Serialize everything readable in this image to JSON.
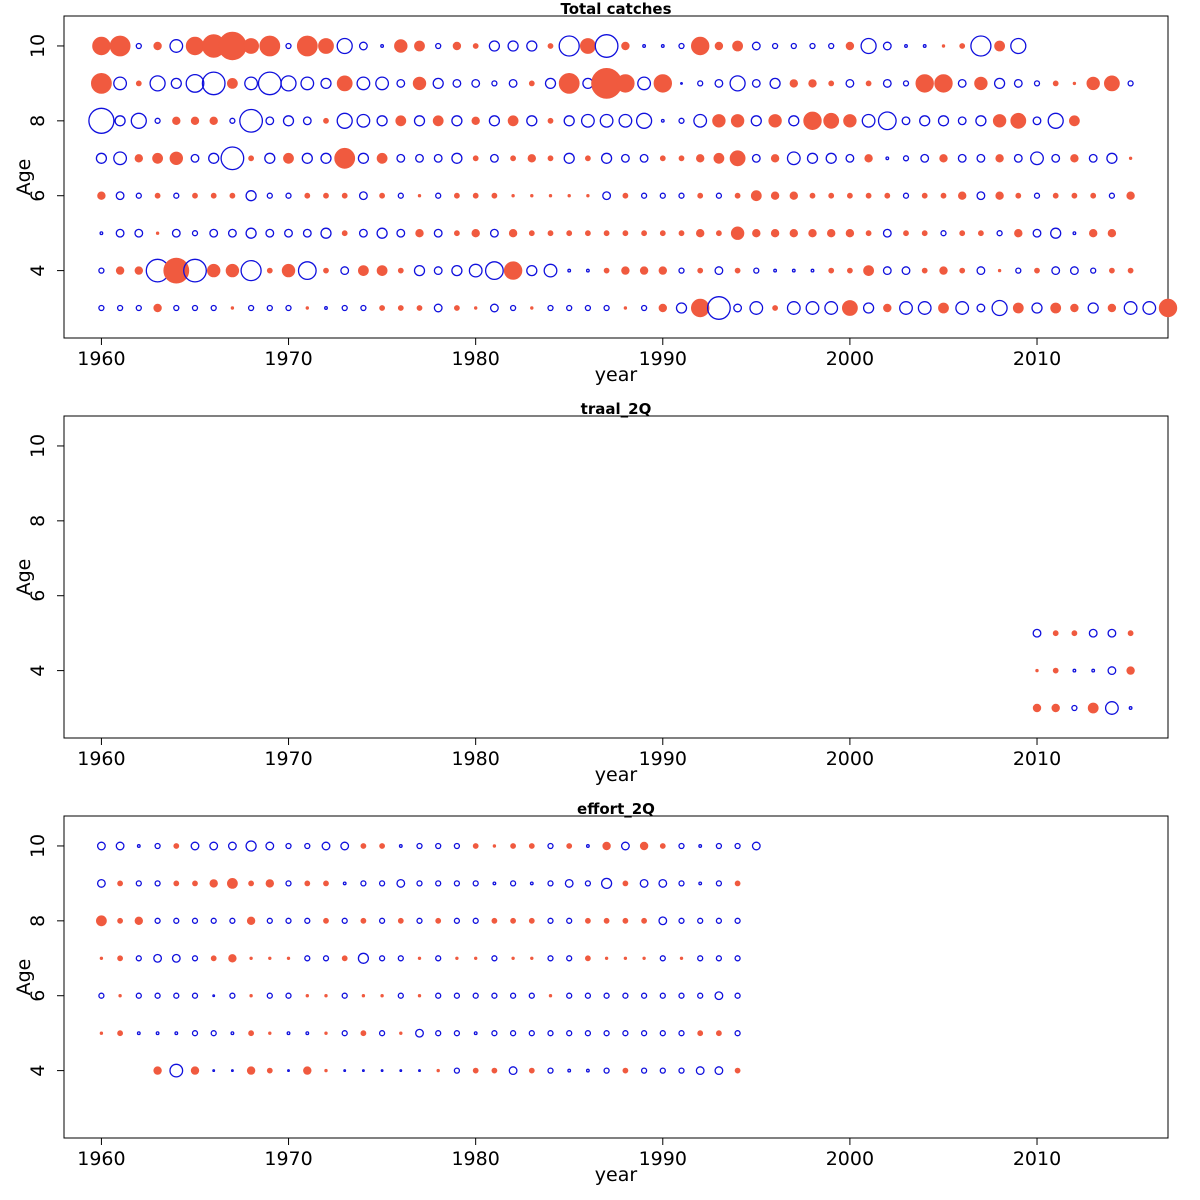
{
  "colors": {
    "positive": "#f05a3f",
    "negative": "#1010dd"
  },
  "chart_data": [
    {
      "type": "scatter",
      "title": "Total catches",
      "xlabel": "year",
      "ylabel": "Age",
      "xlim": [
        1958,
        2017
      ],
      "ylim": [
        2.2,
        10.8
      ],
      "xticks": [
        1960,
        1970,
        1980,
        1990,
        2000,
        2010
      ],
      "yticks": [
        4,
        6,
        8,
        10
      ],
      "grid": false,
      "encoding": "bubble size = |residual|; filled = positive, open = negative",
      "rows": [
        {
          "age": 10,
          "start": 1960,
          "v": [
            7,
            8,
            -2,
            3,
            -5,
            7,
            9,
            11,
            6,
            8,
            -2,
            8,
            6,
            -6,
            -3,
            -1,
            5,
            4,
            -2,
            3,
            2,
            -4,
            -4,
            -4,
            2,
            -8,
            6,
            -9,
            3,
            -1,
            -1,
            -2,
            7,
            3,
            4,
            -3,
            -2,
            -2,
            -2,
            -2,
            3,
            -6,
            -3,
            -1,
            -1,
            1,
            2,
            -8,
            4,
            -6
          ]
        },
        {
          "age": 9,
          "start": 1960,
          "v": [
            8,
            -5,
            2,
            -6,
            -4,
            -7,
            -9,
            4,
            -5,
            -9,
            -6,
            -5,
            -4,
            6,
            -5,
            -5,
            -3,
            5,
            -4,
            -3,
            -3,
            -2,
            -3,
            2,
            -4,
            8,
            -4,
            12,
            7,
            -5,
            7,
            0,
            -2,
            -3,
            -6,
            -3,
            -4,
            3,
            3,
            2,
            -3,
            2,
            -3,
            -2,
            7,
            7,
            -3,
            5,
            -4,
            -3,
            -2,
            2,
            1,
            5,
            6,
            -2
          ]
        },
        {
          "age": 8,
          "start": 1960,
          "v": [
            -10,
            -4,
            -6,
            -2,
            3,
            3,
            3,
            -2,
            -9,
            -3,
            -4,
            -3,
            2,
            -6,
            -5,
            -4,
            4,
            -4,
            4,
            -4,
            3,
            -4,
            4,
            -4,
            2,
            -4,
            -5,
            -5,
            -5,
            -6,
            -1,
            -2,
            -5,
            5,
            5,
            -4,
            5,
            -4,
            7,
            6,
            5,
            -5,
            -7,
            -3,
            -4,
            -4,
            -3,
            -4,
            5,
            6,
            -3,
            -6,
            4
          ]
        },
        {
          "age": 7,
          "start": 1960,
          "v": [
            -4,
            -5,
            3,
            4,
            5,
            -3,
            -4,
            -9,
            2,
            -4,
            4,
            -4,
            -4,
            8,
            -4,
            4,
            -3,
            -3,
            -3,
            -4,
            2,
            -3,
            2,
            3,
            2,
            -4,
            2,
            -4,
            -3,
            -3,
            2,
            2,
            3,
            4,
            6,
            -3,
            3,
            -5,
            -4,
            -4,
            -3,
            3,
            -1,
            -2,
            -3,
            3,
            -3,
            -3,
            3,
            -3,
            -5,
            -3,
            3,
            -3,
            -4,
            1
          ]
        },
        {
          "age": 6,
          "start": 1960,
          "v": [
            3,
            -3,
            -2,
            2,
            -2,
            2,
            2,
            2,
            -4,
            -2,
            -2,
            2,
            2,
            2,
            -3,
            2,
            -2,
            1,
            -2,
            2,
            2,
            2,
            1,
            1,
            1,
            1,
            1,
            -3,
            2,
            -2,
            -2,
            -2,
            2,
            -2,
            2,
            4,
            3,
            3,
            2,
            2,
            2,
            2,
            2,
            -2,
            2,
            2,
            3,
            -3,
            3,
            2,
            -2,
            2,
            2,
            2,
            -2,
            3
          ]
        },
        {
          "age": 5,
          "start": 1960,
          "v": [
            -1,
            -3,
            -3,
            1,
            -3,
            -2,
            -3,
            -3,
            -4,
            -3,
            -3,
            -3,
            -4,
            2,
            -3,
            -4,
            -3,
            3,
            -3,
            2,
            3,
            -3,
            3,
            2,
            2,
            2,
            2,
            2,
            2,
            2,
            2,
            2,
            3,
            2,
            5,
            3,
            3,
            3,
            3,
            3,
            3,
            2,
            -3,
            2,
            2,
            -2,
            2,
            2,
            -2,
            3,
            -3,
            -4,
            -1,
            3,
            3
          ]
        },
        {
          "age": 4,
          "start": 1960,
          "v": [
            -2,
            3,
            3,
            -9,
            10,
            -9,
            5,
            5,
            -8,
            2,
            5,
            -7,
            2,
            -3,
            4,
            4,
            2,
            -4,
            -3,
            -4,
            -5,
            -7,
            7,
            -4,
            -5,
            -1,
            -1,
            2,
            3,
            3,
            3,
            -2,
            2,
            -3,
            2,
            -2,
            -1,
            -1,
            -1,
            2,
            2,
            4,
            -3,
            -3,
            2,
            3,
            2,
            -3,
            1,
            -2,
            2,
            -3,
            -3,
            -2,
            2,
            2
          ]
        },
        {
          "age": 3,
          "start": 1960,
          "v": [
            -2,
            -2,
            -2,
            3,
            -2,
            -2,
            -2,
            1,
            -2,
            -2,
            -2,
            1,
            -1,
            -2,
            -2,
            2,
            2,
            2,
            -3,
            2,
            1,
            -3,
            -2,
            1,
            -2,
            -2,
            -2,
            -2,
            1,
            -2,
            3,
            -4,
            7,
            -9,
            -3,
            -5,
            2,
            -5,
            -5,
            -5,
            6,
            -4,
            3,
            -5,
            -5,
            4,
            -5,
            -3,
            -6,
            4,
            -4,
            4,
            3,
            -4,
            3,
            -5,
            -5,
            7
          ]
        }
      ]
    },
    {
      "type": "scatter",
      "title": "traal_2Q",
      "xlabel": "year",
      "ylabel": "Age",
      "xlim": [
        1958,
        2017
      ],
      "ylim": [
        2.2,
        10.8
      ],
      "xticks": [
        1960,
        1970,
        1980,
        1990,
        2000,
        2010
      ],
      "yticks": [
        4,
        6,
        8,
        10
      ],
      "grid": false,
      "rows": [
        {
          "age": 5,
          "start": 2010,
          "v": [
            -3,
            2,
            2,
            -3,
            -3,
            2
          ]
        },
        {
          "age": 4,
          "start": 2010,
          "v": [
            1,
            2,
            -1,
            -1,
            -3,
            3
          ]
        },
        {
          "age": 3,
          "start": 2010,
          "v": [
            3,
            3,
            -2,
            4,
            -5,
            -1
          ]
        }
      ]
    },
    {
      "type": "scatter",
      "title": "effort_2Q",
      "xlabel": "year",
      "ylabel": "Age",
      "xlim": [
        1958,
        2017
      ],
      "ylim": [
        2.2,
        10.8
      ],
      "xticks": [
        1960,
        1970,
        1980,
        1990,
        2000,
        2010
      ],
      "yticks": [
        4,
        6,
        8,
        10
      ],
      "grid": false,
      "rows": [
        {
          "age": 10,
          "start": 1960,
          "v": [
            -3,
            -3,
            -1,
            -2,
            2,
            -3,
            -3,
            -3,
            -4,
            -3,
            -2,
            -2,
            -3,
            -3,
            2,
            2,
            -1,
            -2,
            -2,
            -2,
            2,
            1,
            2,
            2,
            -2,
            2,
            -1,
            3,
            -3,
            3,
            2,
            -2,
            -1,
            -2,
            -2,
            -3
          ]
        },
        {
          "age": 9,
          "start": 1960,
          "v": [
            -3,
            2,
            -2,
            -2,
            2,
            2,
            3,
            4,
            2,
            3,
            -2,
            2,
            2,
            -1,
            -2,
            -2,
            -3,
            -2,
            -2,
            -2,
            -2,
            -1,
            -2,
            -1,
            -2,
            -3,
            -2,
            -4,
            2,
            -3,
            -3,
            -2,
            -1,
            -2,
            2
          ]
        },
        {
          "age": 8,
          "start": 1960,
          "v": [
            4,
            2,
            3,
            -2,
            -2,
            -2,
            -2,
            -2,
            3,
            -2,
            -2,
            -2,
            2,
            -2,
            2,
            -2,
            2,
            -2,
            2,
            -2,
            -2,
            2,
            2,
            2,
            -2,
            -2,
            2,
            2,
            2,
            2,
            -3,
            -2,
            -2,
            -2,
            -2
          ]
        },
        {
          "age": 7,
          "start": 1960,
          "v": [
            1,
            2,
            -2,
            -3,
            -3,
            -2,
            2,
            3,
            1,
            1,
            1,
            -2,
            -2,
            2,
            -4,
            -2,
            -2,
            1,
            -2,
            1,
            1,
            -2,
            1,
            1,
            -2,
            -2,
            2,
            1,
            1,
            1,
            -2,
            1,
            -2,
            -2,
            -2
          ]
        },
        {
          "age": 6,
          "start": 1960,
          "v": [
            -2,
            1,
            -2,
            -2,
            -2,
            -2,
            0,
            -2,
            1,
            -2,
            -2,
            1,
            1,
            -2,
            1,
            1,
            -2,
            1,
            -2,
            -2,
            -2,
            -2,
            -2,
            -2,
            1,
            -2,
            -2,
            -2,
            -2,
            -2,
            -2,
            -2,
            -2,
            -3,
            -2
          ]
        },
        {
          "age": 5,
          "start": 1960,
          "v": [
            1,
            2,
            -1,
            -1,
            -1,
            -2,
            -2,
            -1,
            2,
            1,
            -1,
            -1,
            1,
            -2,
            2,
            -2,
            1,
            -3,
            -2,
            -2,
            -1,
            -2,
            -2,
            -2,
            -2,
            -2,
            -2,
            -2,
            -2,
            -2,
            -2,
            -2,
            2,
            2,
            -2
          ]
        },
        {
          "age": 4,
          "start": 1963,
          "v": [
            3,
            -5,
            3,
            0,
            0,
            3,
            2,
            0,
            3,
            1,
            0,
            0,
            0,
            0,
            0,
            1,
            -2,
            2,
            2,
            -3,
            2,
            -2,
            -1,
            -1,
            -2,
            2,
            -2,
            -2,
            -2,
            -3,
            -3,
            2
          ]
        }
      ]
    }
  ]
}
